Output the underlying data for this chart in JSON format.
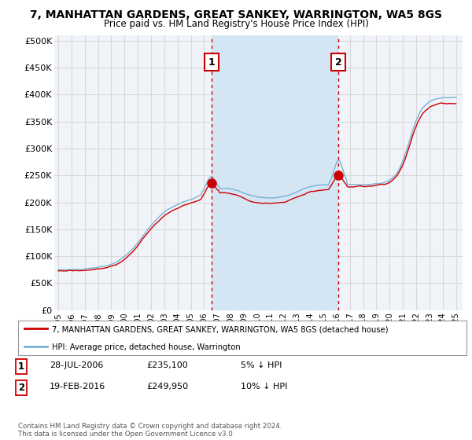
{
  "title": "7, MANHATTAN GARDENS, GREAT SANKEY, WARRINGTON, WA5 8GS",
  "subtitle": "Price paid vs. HM Land Registry's House Price Index (HPI)",
  "yticks": [
    0,
    50000,
    100000,
    150000,
    200000,
    250000,
    300000,
    350000,
    400000,
    450000,
    500000
  ],
  "ytick_labels": [
    "£0",
    "£50K",
    "£100K",
    "£150K",
    "£200K",
    "£250K",
    "£300K",
    "£350K",
    "£400K",
    "£450K",
    "£500K"
  ],
  "ylim": [
    0,
    510000
  ],
  "hpi_color": "#7ab0d4",
  "property_color": "#cc0000",
  "sale1_date": 2006.57,
  "sale1_price": 235100,
  "sale2_date": 2016.12,
  "sale2_price": 249950,
  "annotation1_label": "1",
  "annotation2_label": "2",
  "legend_property": "7, MANHATTAN GARDENS, GREAT SANKEY, WARRINGTON, WA5 8GS (detached house)",
  "legend_hpi": "HPI: Average price, detached house, Warrington",
  "table_row1": [
    "1",
    "28-JUL-2006",
    "£235,100",
    "5% ↓ HPI"
  ],
  "table_row2": [
    "2",
    "19-FEB-2016",
    "£249,950",
    "10% ↓ HPI"
  ],
  "footer": "Contains HM Land Registry data © Crown copyright and database right 2024.\nThis data is licensed under the Open Government Licence v3.0.",
  "plot_bg_color": "#f0f4f8",
  "grid_color": "#d8d8d8",
  "shade_color": "#d0e4f4",
  "vline_color": "#cc0000"
}
